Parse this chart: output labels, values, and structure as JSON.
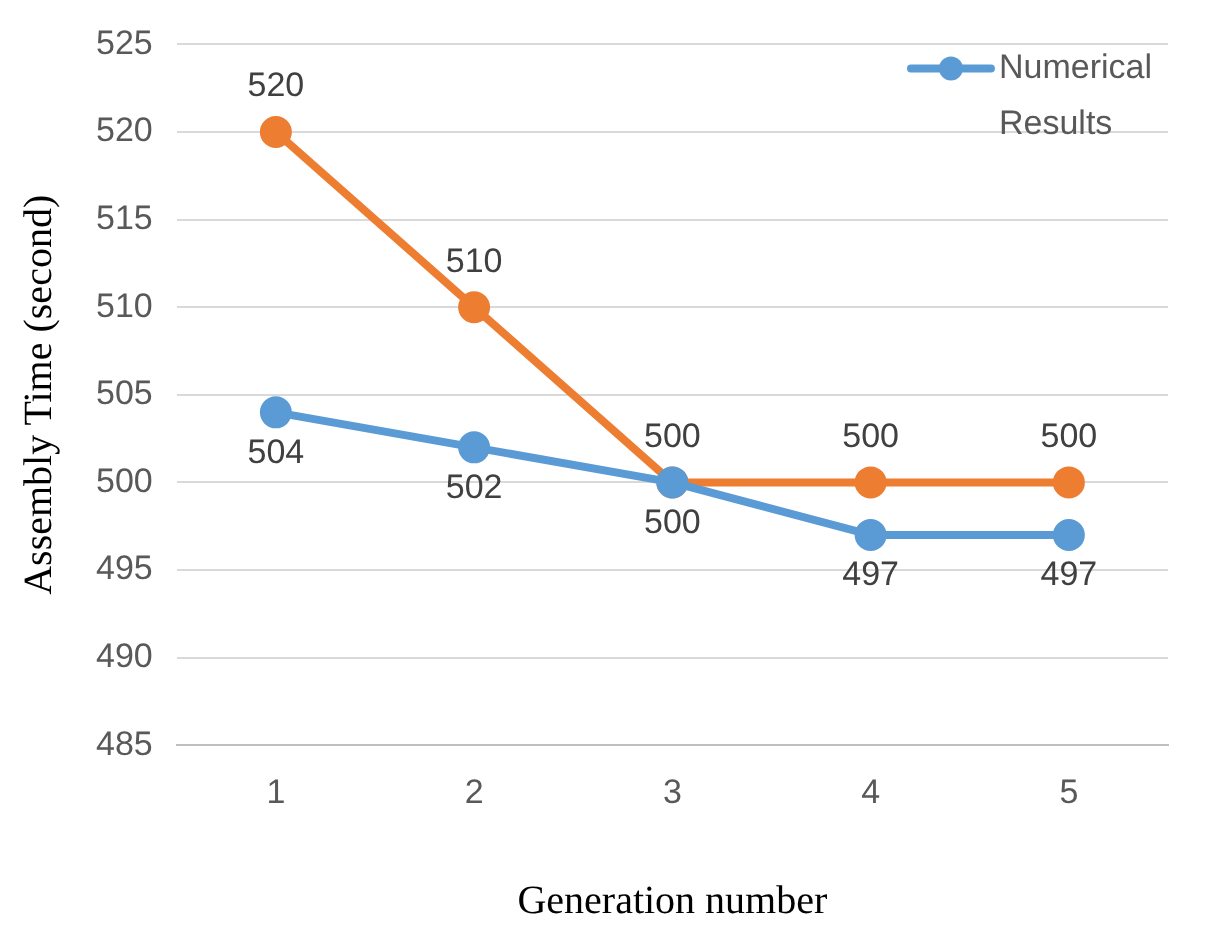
{
  "chart_data": {
    "type": "line",
    "xlabel": "Generation number",
    "ylabel": "Assembly Time (second)",
    "categories": [
      "1",
      "2",
      "3",
      "4",
      "5"
    ],
    "series": [
      {
        "name": "Numerical Results",
        "color": "#5b9bd5",
        "values": [
          504,
          502,
          500,
          497,
          497
        ]
      },
      {
        "color": "#ed7d31",
        "values": [
          520,
          510,
          500,
          500,
          500
        ]
      }
    ],
    "ylim": [
      485,
      525
    ],
    "yticks": [
      485,
      490,
      495,
      500,
      505,
      510,
      515,
      520,
      525
    ],
    "grid": "y",
    "legend": "top right",
    "marker": "circle",
    "line_style": "solid",
    "data_labels": true
  }
}
